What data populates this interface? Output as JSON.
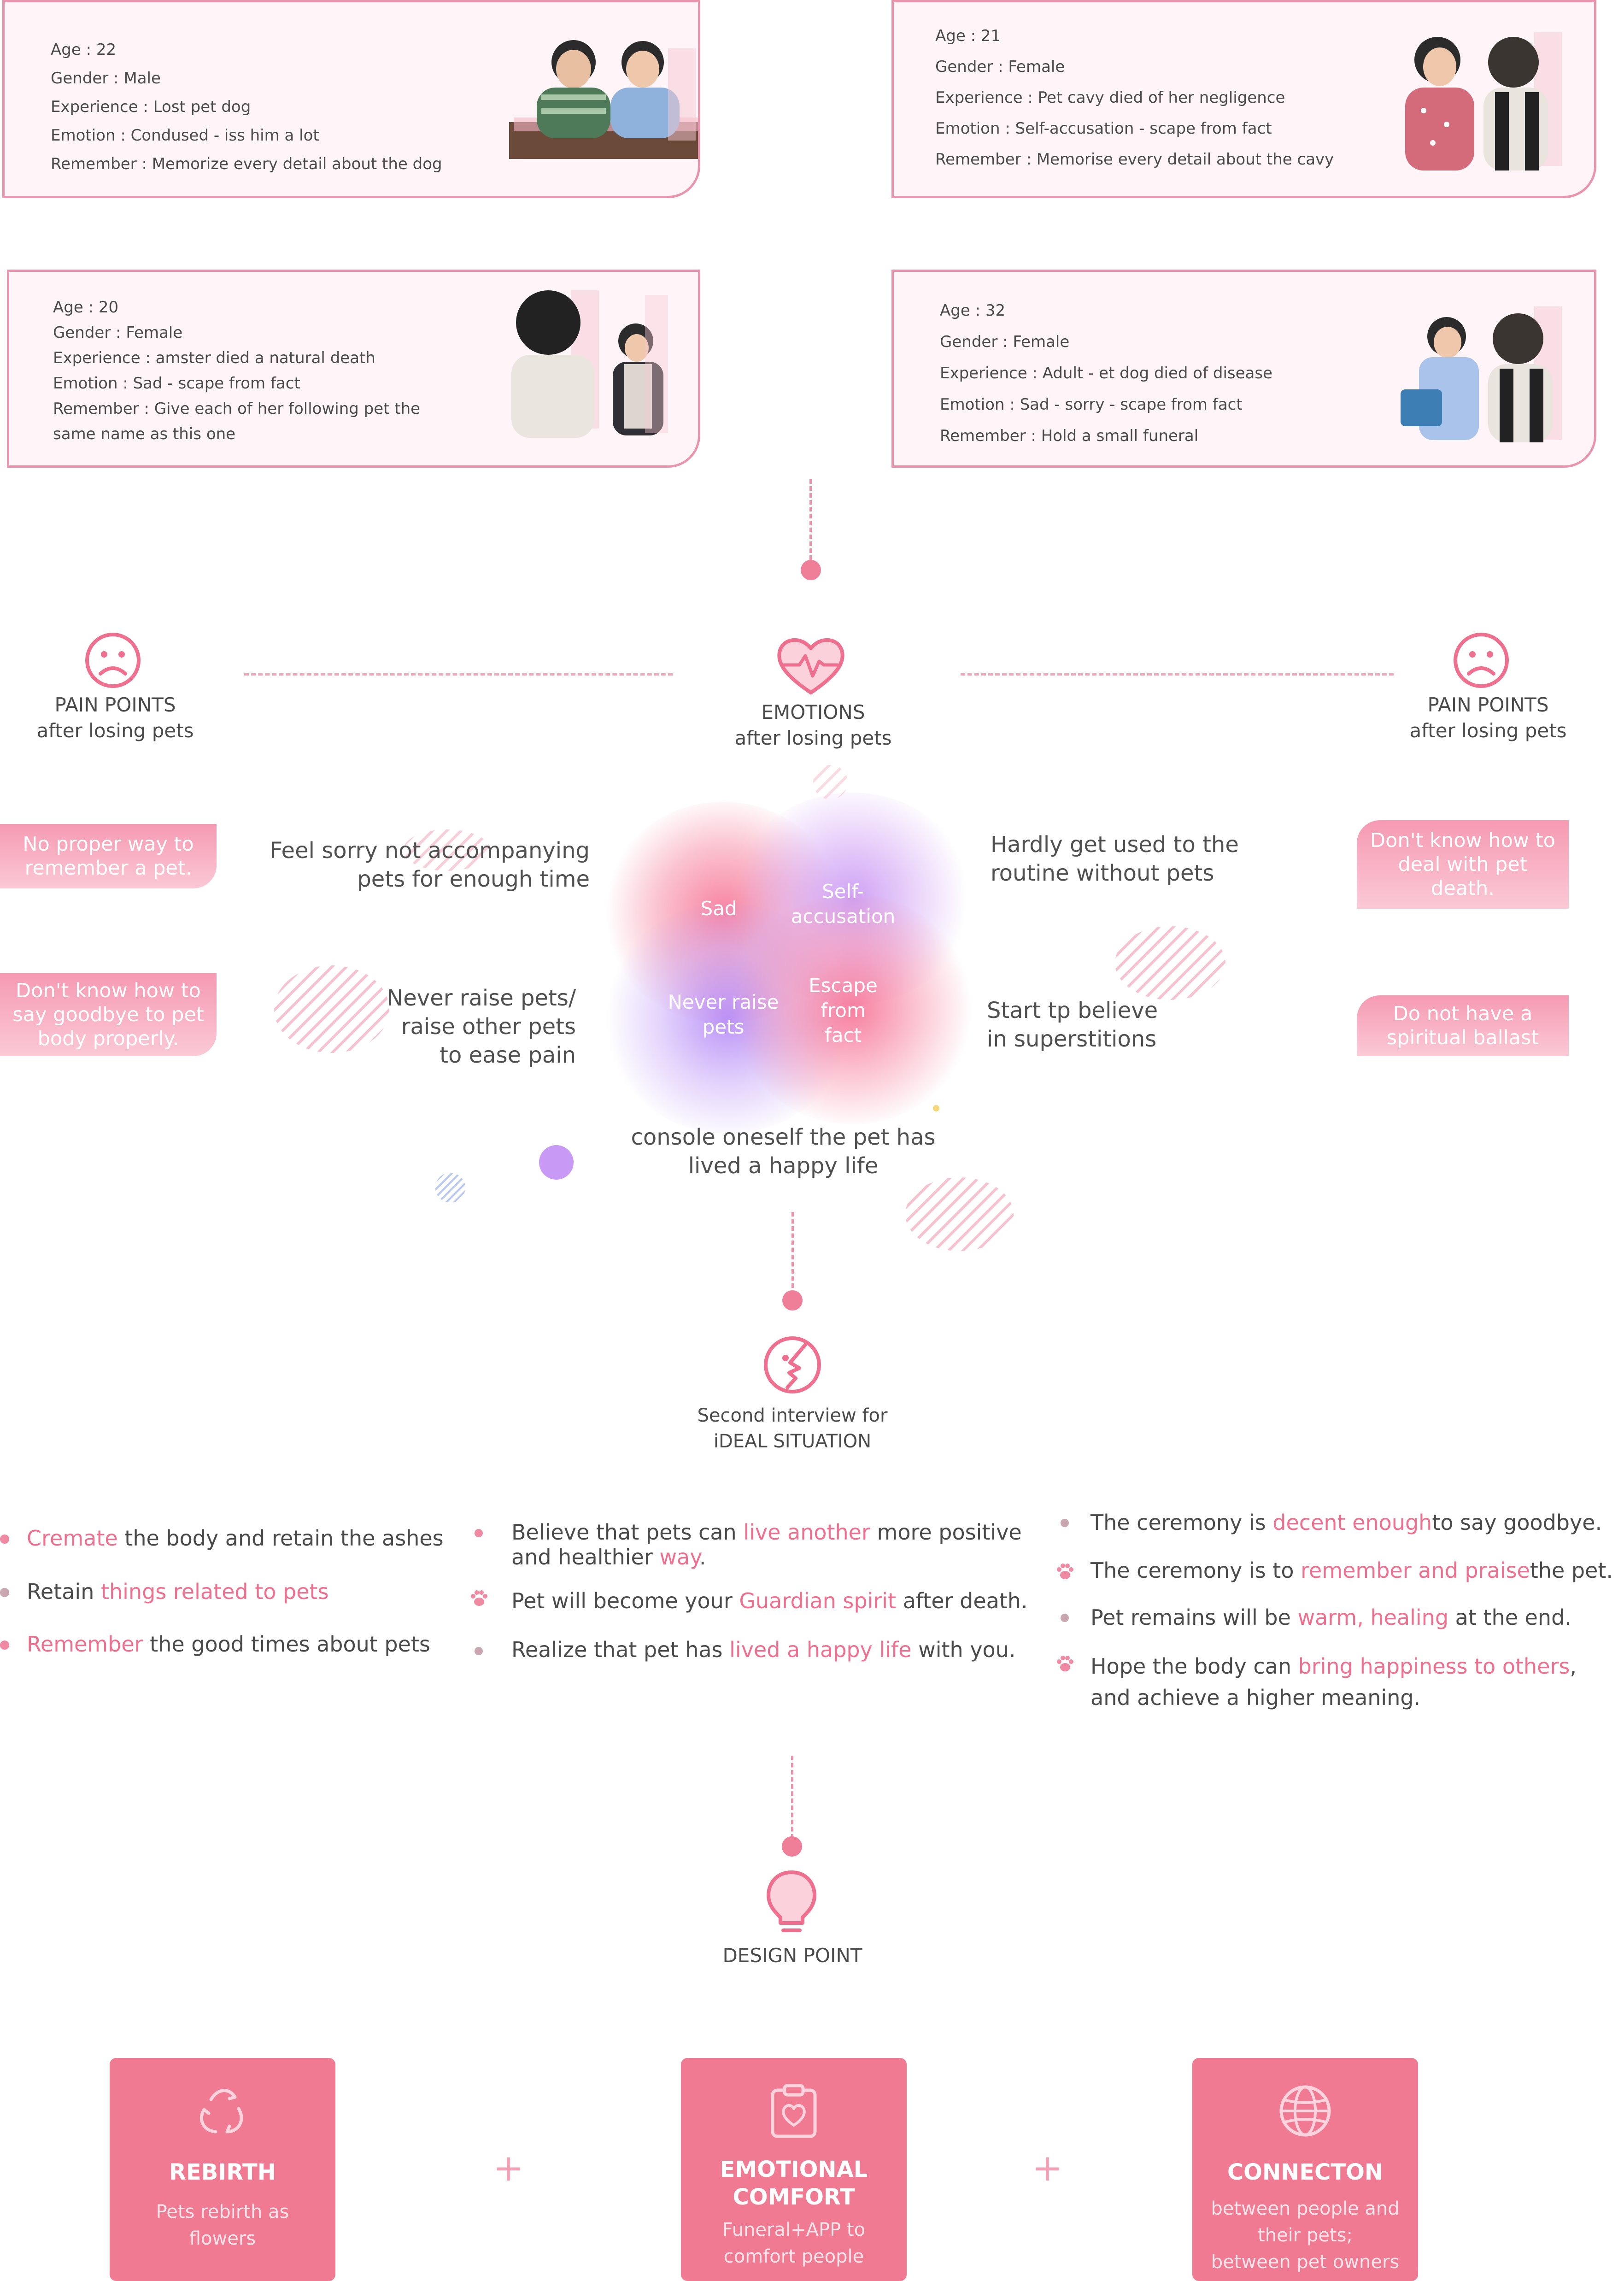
{
  "personas": [
    {
      "lines": [
        "Age : 22",
        "Gender : Male",
        "Experience : Lost pet dog",
        "Emotion : Condused - iss him a lot",
        "Remember : Memorize every detail about the dog"
      ]
    },
    {
      "lines": [
        "Age : 21",
        "Gender : Female",
        "Experience : Pet cavy died of her negligence",
        "Emotion : Self-accusation - scape from fact",
        "Remember : Memorise every detail about the cavy"
      ]
    },
    {
      "lines": [
        "Age : 20",
        "Gender : Female",
        "Experience : amster died a natural death",
        "Emotion : Sad - scape from fact",
        "Remember : Give each of her following pet the",
        "same name as this one"
      ]
    },
    {
      "lines": [
        "Age : 32",
        "Gender : Female",
        "Experience : Adult - et dog died of disease",
        "Emotion : Sad - sorry - scape from fact",
        "Remember : Hold a small funeral"
      ]
    }
  ],
  "sections": {
    "pain_left": {
      "title": "PAIN POINTS",
      "sub": "after losing pets"
    },
    "emotions": {
      "title": "EMOTIONS",
      "sub": "after losing pets"
    },
    "pain_right": {
      "title": "PAIN POINTS",
      "sub": "after losing pets"
    },
    "second_interview": {
      "title": "Second interview for",
      "sub": "iDEAL SITUATION"
    },
    "design_point": {
      "title": "DESIGN POINT"
    }
  },
  "pain_tags_left": [
    "No proper way to remember a pet.",
    "Don't know how to say goodbye to pet body properly."
  ],
  "pain_tags_right": [
    "Don't know how to deal with pet death.",
    "Do not have a spiritual ballast"
  ],
  "emotion_texts": {
    "feel_sorry": [
      "Feel sorry not accompanying",
      "pets for enough time"
    ],
    "never_raise": [
      "Never raise pets/",
      "raise other pets",
      "to ease pain"
    ],
    "hardly": [
      "Hardly get used to the",
      "routine without pets"
    ],
    "superstitions": [
      "Start tp believe",
      "in superstitions"
    ],
    "console": [
      "console oneself the pet has",
      "lived a happy life"
    ]
  },
  "blobs": {
    "sad": "Sad",
    "self_accusation": [
      "Self-",
      "accusation"
    ],
    "never_raise": [
      "Never raise",
      "pets"
    ],
    "escape": [
      "Escape",
      "from",
      "fact"
    ]
  },
  "ideal_col1": [
    {
      "pre": "",
      "hl": "Cremate",
      "post": " the body and retain the ashes"
    },
    {
      "pre": "Retain ",
      "hl": "things related to pets",
      "post": ""
    },
    {
      "pre": "",
      "hl": "Remember",
      "post": " the good times about pets"
    }
  ],
  "ideal_col2": [
    {
      "l1_pre": "Believe that pets can ",
      "l1_hl": "live another",
      "l1_post": " more positive",
      "l2_pre": "and healthier ",
      "l2_hl": "way",
      "l2_post": "."
    },
    {
      "pre": "Pet will become your ",
      "hl": "Guardian spirit",
      "post": " after death."
    },
    {
      "pre": "Realize that pet has ",
      "hl": "lived a happy life",
      "post": " with you."
    }
  ],
  "ideal_col3": [
    {
      "pre": "The ceremony is ",
      "hl": "decent enough",
      "post": "to say goodbye."
    },
    {
      "pre": "The ceremony is to ",
      "hl": "remember and praise",
      "post": "the pet."
    },
    {
      "pre": "Pet remains will be ",
      "hl": "warm, healing",
      "post": " at the end."
    },
    {
      "pre": "Hope the body can ",
      "hl": "bring happiness to others",
      "post": ",",
      "l2": "and achieve a higher meaning."
    }
  ],
  "design_boxes": [
    {
      "title": [
        "REBIRTH"
      ],
      "sub": [
        "Pets rebirth as",
        "flowers"
      ]
    },
    {
      "title": [
        "EMOTIONAL",
        "COMFORT"
      ],
      "sub": [
        "Funeral+APP to",
        "comfort people"
      ]
    },
    {
      "title": [
        "CONNECTON"
      ],
      "sub": [
        "between people and",
        "their pets;",
        "between pet owners"
      ]
    }
  ],
  "plus_sign": "+",
  "colors": {
    "accent": "#f07a92",
    "highlight": "#ef6f8e",
    "card_border": "#e894ac"
  }
}
